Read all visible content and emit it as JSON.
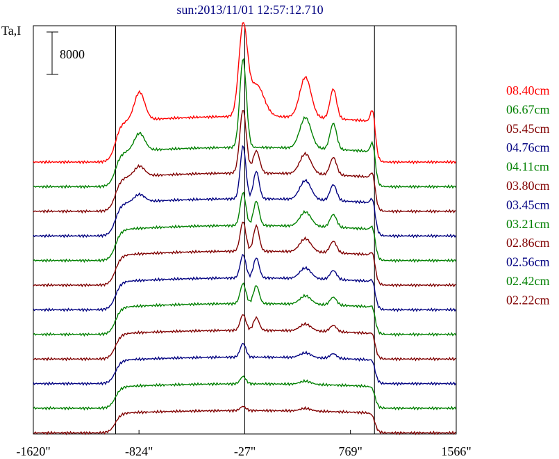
{
  "chart_data": {
    "type": "line",
    "title": "sun:2013/11/01 12:57:12.710",
    "ylabel": "Ta,I",
    "scale_bar_label": "8000",
    "xlim": [
      -1620,
      1566
    ],
    "x_ticks": [
      {
        "value": -1620,
        "label": "-1620\""
      },
      {
        "value": -824,
        "label": "-824\""
      },
      {
        "value": -27,
        "label": "-27\""
      },
      {
        "value": 769,
        "label": "769\""
      },
      {
        "value": 1566,
        "label": "1566\""
      }
    ],
    "vertical_markers": [
      -1000,
      -27,
      950
    ],
    "grid": false,
    "legend_placement": "right",
    "series": [
      {
        "name": "08.40cm",
        "color": "#ff0000",
        "offset": 0,
        "base_left": 0,
        "plateau": 8600,
        "quiet_right": 0,
        "peaks": [
          [
            -820,
            55,
            5300
          ],
          [
            -40,
            45,
            16500
          ],
          [
            60,
            80,
            6000
          ],
          [
            430,
            60,
            7600
          ],
          [
            640,
            35,
            5600
          ],
          [
            940,
            25,
            4200
          ]
        ]
      },
      {
        "name": "06.67cm",
        "color": "#008000",
        "offset": -1,
        "base_left": 0,
        "plateau": 7400,
        "quiet_right": 0,
        "peaks": [
          [
            -820,
            55,
            3300
          ],
          [
            -40,
            35,
            16700
          ],
          [
            430,
            60,
            5800
          ],
          [
            640,
            35,
            4900
          ],
          [
            940,
            25,
            3400
          ]
        ]
      },
      {
        "name": "05.45cm",
        "color": "#800000",
        "offset": -2,
        "base_left": 0,
        "plateau": 7200,
        "quiet_right": 0,
        "peaks": [
          [
            -820,
            55,
            1900
          ],
          [
            -40,
            35,
            12000
          ],
          [
            60,
            35,
            4200
          ],
          [
            430,
            60,
            3800
          ],
          [
            640,
            35,
            3300
          ],
          [
            940,
            25,
            2400
          ]
        ]
      },
      {
        "name": "04.76cm",
        "color": "#000080",
        "offset": -3,
        "base_left": 0,
        "plateau": 7000,
        "quiet_right": 0,
        "peaks": [
          [
            -820,
            55,
            1400
          ],
          [
            -40,
            30,
            10000
          ],
          [
            60,
            30,
            5200
          ],
          [
            430,
            60,
            3600
          ],
          [
            640,
            35,
            3000
          ],
          [
            940,
            25,
            2300
          ]
        ]
      },
      {
        "name": "04.11cm",
        "color": "#008000",
        "offset": -4,
        "base_left": 0,
        "plateau": 6600,
        "quiet_right": 0,
        "peaks": [
          [
            -40,
            30,
            6200
          ],
          [
            60,
            30,
            4600
          ],
          [
            430,
            60,
            2700
          ],
          [
            640,
            35,
            2400
          ],
          [
            940,
            25,
            1900
          ]
        ]
      },
      {
        "name": "03.80cm",
        "color": "#800000",
        "offset": -5,
        "base_left": 0,
        "plateau": 6400,
        "quiet_right": 0,
        "peaks": [
          [
            -40,
            30,
            5600
          ],
          [
            60,
            30,
            4800
          ],
          [
            430,
            60,
            2500
          ],
          [
            640,
            35,
            2200
          ],
          [
            940,
            25,
            1800
          ]
        ]
      },
      {
        "name": "03.45cm",
        "color": "#000080",
        "offset": -6,
        "base_left": 0,
        "plateau": 6000,
        "quiet_right": 0,
        "peaks": [
          [
            -40,
            30,
            4400
          ],
          [
            60,
            30,
            3800
          ],
          [
            430,
            60,
            2000
          ],
          [
            640,
            35,
            1700
          ],
          [
            940,
            25,
            1500
          ]
        ]
      },
      {
        "name": "03.21cm",
        "color": "#008000",
        "offset": -7,
        "base_left": 0,
        "plateau": 5800,
        "quiet_right": 0,
        "peaks": [
          [
            -40,
            30,
            3800
          ],
          [
            60,
            30,
            3400
          ],
          [
            430,
            60,
            1600
          ],
          [
            640,
            35,
            1500
          ],
          [
            940,
            25,
            1300
          ]
        ]
      },
      {
        "name": "02.86cm",
        "color": "#800000",
        "offset": -8,
        "base_left": 0,
        "plateau": 5400,
        "quiet_right": 0,
        "peaks": [
          [
            -40,
            30,
            3000
          ],
          [
            60,
            30,
            2400
          ],
          [
            430,
            60,
            1300
          ],
          [
            640,
            35,
            1200
          ],
          [
            940,
            25,
            1100
          ]
        ]
      },
      {
        "name": "02.56cm",
        "color": "#000080",
        "offset": -9,
        "base_left": 0,
        "plateau": 5000,
        "quiet_right": 0,
        "peaks": [
          [
            -40,
            30,
            2600
          ],
          [
            430,
            60,
            900
          ],
          [
            640,
            35,
            900
          ],
          [
            940,
            25,
            900
          ]
        ]
      },
      {
        "name": "02.42cm",
        "color": "#008000",
        "offset": -10,
        "base_left": 0,
        "plateau": 4600,
        "quiet_right": 0,
        "peaks": [
          [
            -40,
            30,
            1400
          ],
          [
            430,
            60,
            600
          ],
          [
            940,
            25,
            600
          ]
        ]
      },
      {
        "name": "02.22cm",
        "color": "#800000",
        "offset": -11,
        "base_left": 0,
        "plateau": 4200,
        "quiet_right": 0,
        "peaks": [
          [
            -40,
            30,
            800
          ],
          [
            430,
            60,
            500
          ],
          [
            940,
            25,
            400
          ]
        ]
      }
    ]
  }
}
